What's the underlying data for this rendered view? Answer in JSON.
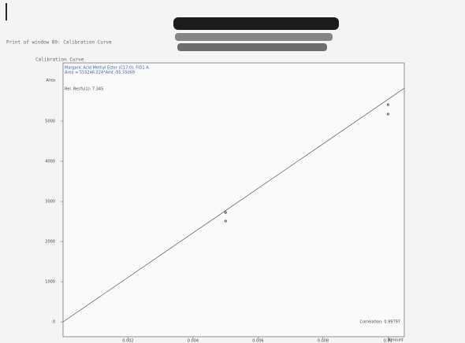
{
  "header": {
    "title": "Print of window 80: Calibration Curve"
  },
  "chart_data": {
    "type": "scatter",
    "title": "Calibration Curve",
    "subtitle": [
      "Margaric Acid Methyl Ester (C17:0), FID1 A",
      "Area = 555246.324*Amt -95.55069"
    ],
    "annotations": [
      "Rel. Res%(1): 7.345",
      "Correlation: 0.99797"
    ],
    "x_label": "Amount",
    "y_label": "Area",
    "xlim": [
      0,
      0.0105
    ],
    "ylim": [
      -370,
      6450
    ],
    "xticks": [
      0.002,
      0.004,
      0.006,
      0.008,
      0.01
    ],
    "yticks": [
      0,
      1000,
      2000,
      3000,
      4000,
      5000
    ],
    "series": [
      {
        "type": "scatter",
        "color": "#333333",
        "x": [
          0.005,
          0.005,
          0.01,
          0.01
        ],
        "values": [
          2725,
          2510,
          5410,
          5175
        ]
      },
      {
        "type": "line",
        "color": "#555555",
        "x": [
          0,
          0.0105
        ],
        "values": [
          0,
          5820
        ]
      }
    ]
  }
}
